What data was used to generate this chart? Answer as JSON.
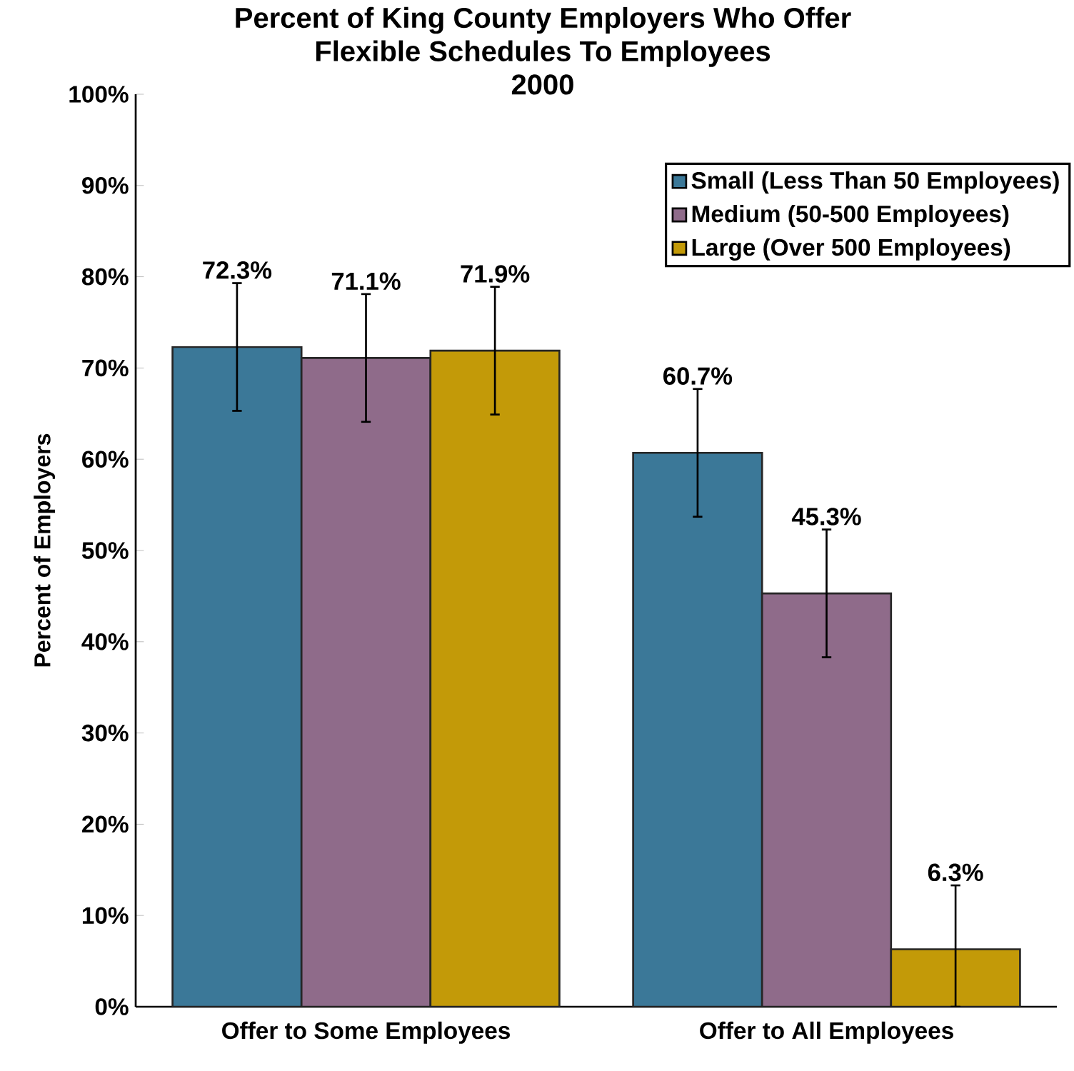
{
  "chart_data": {
    "type": "bar",
    "title": "Percent of King County Employers Who Offer\nFlexible Schedules To Employees\n2000",
    "ylabel": "Percent of Employers",
    "categories": [
      "Offer to Some Employees",
      "Offer to All Employees"
    ],
    "series": [
      {
        "name": "Small (Less Than 50 Employees)",
        "color": "#3b7898",
        "values": [
          72.3,
          60.7
        ],
        "errors": [
          7,
          7
        ],
        "value_labels": [
          "72.3%",
          "60.7%"
        ]
      },
      {
        "name": "Medium (50-500 Employees)",
        "color": "#8f6b8a",
        "values": [
          71.1,
          45.3
        ],
        "errors": [
          7,
          7
        ],
        "value_labels": [
          "71.1%",
          "45.3%"
        ]
      },
      {
        "name": "Large (Over 500 Employees)",
        "color": "#c39a08",
        "values": [
          71.9,
          6.3
        ],
        "errors": [
          7,
          [
            0,
            13.3
          ]
        ],
        "value_labels": [
          "71.9%",
          "6.3%"
        ]
      }
    ],
    "ylim": [
      0,
      100
    ],
    "yticks": [
      {
        "value": 0,
        "label": "0%"
      },
      {
        "value": 10,
        "label": "10%"
      },
      {
        "value": 20,
        "label": "20%"
      },
      {
        "value": 30,
        "label": "30%"
      },
      {
        "value": 40,
        "label": "40%"
      },
      {
        "value": 50,
        "label": "50%"
      },
      {
        "value": 60,
        "label": "60%"
      },
      {
        "value": 70,
        "label": "70%"
      },
      {
        "value": 80,
        "label": "80%"
      },
      {
        "value": 90,
        "label": "90%"
      },
      {
        "value": 100,
        "label": "100%"
      }
    ],
    "grid": false,
    "legend": "top right"
  }
}
